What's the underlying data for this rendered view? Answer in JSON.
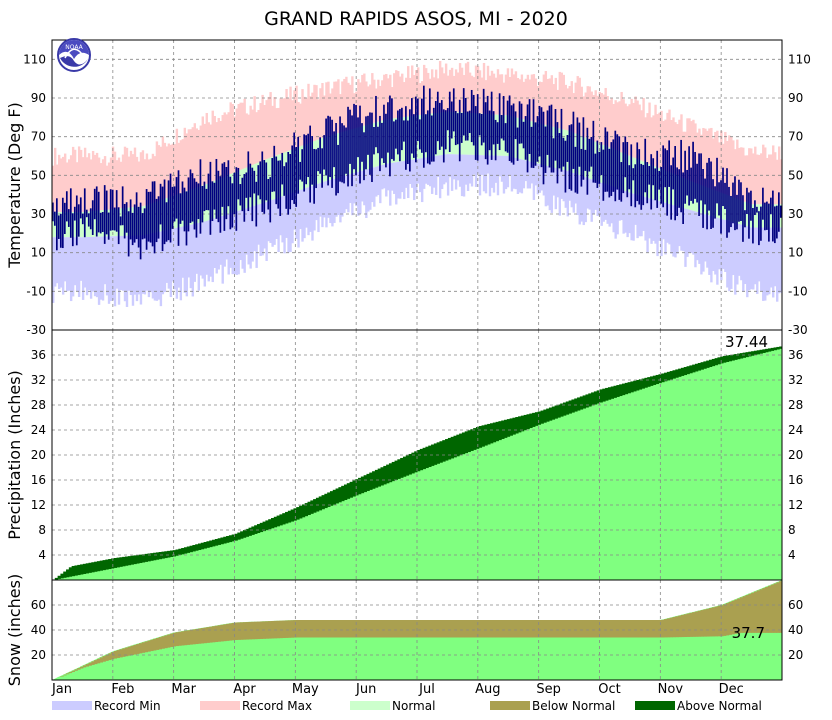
{
  "chart_data": [
    {
      "panel": "temperature",
      "type": "bar",
      "title": "GRAND RAPIDS ASOS, MI - 2020",
      "ylabel": "Temperature (Deg F)",
      "ylim": [
        -30,
        120
      ],
      "yticks": [
        -30,
        -10,
        10,
        30,
        50,
        70,
        90,
        110
      ],
      "months": [
        "Jan",
        "Feb",
        "Mar",
        "Apr",
        "May",
        "Jun",
        "Jul",
        "Aug",
        "Sep",
        "Oct",
        "Nov",
        "Dec"
      ],
      "grid": true,
      "series": [
        {
          "name": "Record Min",
          "color": "#ccccff",
          "values": [
            -10,
            -15,
            -5,
            10,
            25,
            38,
            45,
            45,
            32,
            20,
            5,
            -10
          ]
        },
        {
          "name": "Record Max",
          "color": "#ffcccc",
          "values": [
            60,
            60,
            80,
            88,
            95,
            100,
            105,
            102,
            98,
            88,
            75,
            62
          ]
        },
        {
          "name": "Normal",
          "color": "#ccffcc",
          "low": [
            18,
            19,
            26,
            36,
            47,
            56,
            61,
            60,
            52,
            41,
            32,
            23
          ],
          "high": [
            31,
            34,
            45,
            58,
            70,
            79,
            83,
            81,
            73,
            60,
            47,
            35
          ]
        },
        {
          "name": "Observed",
          "color": "#000080",
          "low": [
            20,
            15,
            25,
            33,
            45,
            58,
            65,
            62,
            48,
            42,
            32,
            22
          ],
          "high": [
            35,
            38,
            50,
            55,
            72,
            85,
            90,
            85,
            75,
            62,
            60,
            38
          ]
        }
      ]
    },
    {
      "panel": "precipitation",
      "type": "area",
      "ylabel": "Precipitation (Inches)",
      "ylim": [
        0,
        40
      ],
      "yticks": [
        4,
        8,
        12,
        16,
        20,
        24,
        28,
        32,
        36
      ],
      "grid": true,
      "annotation": "37.44",
      "series": [
        {
          "name": "Normal",
          "color": "#80ff80",
          "x": [
            0,
            1,
            2,
            3,
            4,
            5,
            6,
            7,
            8,
            9,
            10,
            11,
            12
          ],
          "values": [
            0,
            1.9,
            3.8,
            6.3,
            9.6,
            13.6,
            17.4,
            21.1,
            24.9,
            28.4,
            31.6,
            34.7,
            37.1
          ]
        },
        {
          "name": "Observed",
          "x": [
            0,
            0.3,
            1,
            2,
            3,
            4,
            5,
            6,
            7,
            8,
            9,
            10,
            11,
            12
          ],
          "values": [
            0,
            2.2,
            3.5,
            4.8,
            7.4,
            11.6,
            16.2,
            20.8,
            24.6,
            27.0,
            30.5,
            33.0,
            35.8,
            37.44
          ]
        }
      ]
    },
    {
      "panel": "snow",
      "type": "area",
      "ylabel": "Snow (inches)",
      "ylim": [
        0,
        80
      ],
      "yticks": [
        20,
        40,
        60
      ],
      "grid": true,
      "annotation": "37.7",
      "series": [
        {
          "name": "Normal",
          "color": "#80ff80",
          "x": [
            0,
            1,
            2,
            3,
            4,
            10,
            11,
            12
          ],
          "values": [
            0,
            23,
            38,
            46,
            48,
            48,
            60,
            80
          ]
        },
        {
          "name": "Observed",
          "x": [
            0,
            0.5,
            1,
            2,
            3,
            4,
            10,
            11,
            11.3,
            12
          ],
          "values": [
            0,
            10,
            17,
            27,
            32,
            34,
            34,
            35,
            37.7,
            37.7
          ]
        }
      ]
    }
  ],
  "legend": [
    {
      "label": "Record Min",
      "color": "#ccccff"
    },
    {
      "label": "Record Max",
      "color": "#ffcccc"
    },
    {
      "label": "Normal",
      "color": "#ccffcc"
    },
    {
      "label": "Below Normal",
      "color": "#aaa050"
    },
    {
      "label": "Above Normal",
      "color": "#006600"
    }
  ],
  "colors": {
    "observed_temp": "#000080",
    "above": "#006600",
    "below": "#aaa050",
    "normal_fill": "#80ff80"
  },
  "logo": {
    "text": "NOAA",
    "icon": "noaa-logo-icon"
  }
}
